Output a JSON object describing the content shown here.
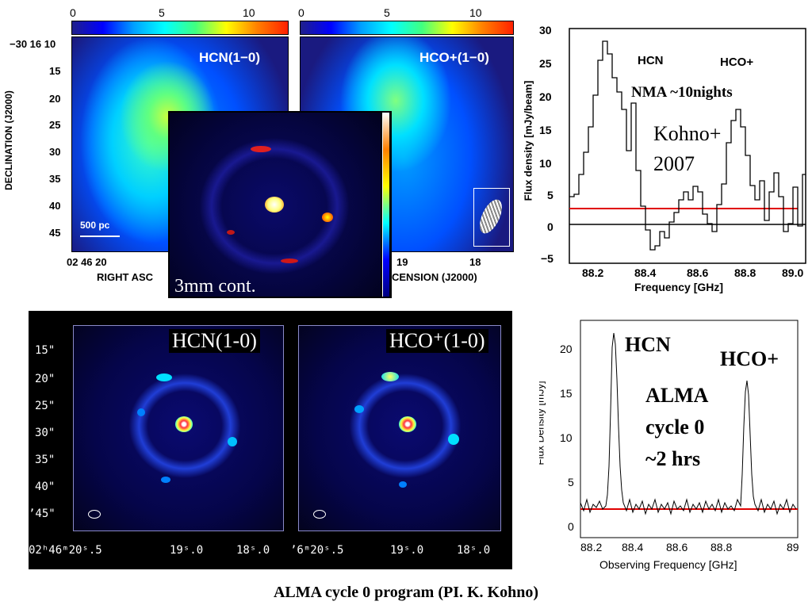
{
  "top_maps": {
    "colorbar_ticks": [
      "0",
      "5",
      "10"
    ],
    "hcn_title": "HCN(1−0)",
    "hco_title": "HCO+(1−0)",
    "dec_label": "DECLINATION (J2000)",
    "dec_ticks": [
      "−30 16 10",
      "15",
      "20",
      "25",
      "30",
      "35",
      "40",
      "45"
    ],
    "ra_tick_left": "02 46 20",
    "ra_label_left": "RIGHT ASC",
    "ra_ticks_right": [
      "19",
      "18"
    ],
    "ra_label_right": "CENSION (J2000)",
    "scalebar_label": "500 pc"
  },
  "inset": {
    "label": "3mm cont."
  },
  "nma_spectrum": {
    "ylabel": "Flux density [mJy/beam]",
    "xlabel": "Frequency [GHz]",
    "yticks": [
      "30",
      "25",
      "20",
      "15",
      "10",
      "5",
      "0",
      "−5"
    ],
    "xticks": [
      "88.2",
      "88.4",
      "88.6",
      "88.8",
      "89.0"
    ],
    "hcn_label": "HCN",
    "hco_label": "HCO+",
    "note": "NMA ~10nights",
    "ref_line1": "Kohno+",
    "ref_line2": "2007",
    "line_color": "#e00000"
  },
  "alma_maps": {
    "hcn_label": "HCN(1-0)",
    "hco_label": "HCO⁺(1-0)",
    "dec_ticks": [
      "15\"",
      "20\"",
      "25\"",
      "30\"",
      "35\"",
      "40\"",
      "ʼ45\""
    ],
    "ra_ticks_left": [
      "02ʰ46ᵐ20ˢ.5",
      "19ˢ.0",
      "18ˢ.0"
    ],
    "ra_ticks_right": [
      "ʼ6ᵐ20ˢ.5",
      "19ˢ.0",
      "18ˢ.0"
    ]
  },
  "alma_spectrum": {
    "ylabel": "Flux Density [mJy]",
    "xlabel": "Observing Frequency [GHz]",
    "yticks": [
      "20",
      "15",
      "10",
      "5",
      "0"
    ],
    "xticks": [
      "88.2",
      "88.4",
      "88.6",
      "88.8",
      "89"
    ],
    "hcn_label": "HCN",
    "hco_label": "HCO+",
    "note_line1": "ALMA",
    "note_line2": "cycle 0",
    "note_line3": "~2 hrs",
    "line_color": "#e00000"
  },
  "caption": "ALMA cycle 0 program (PI. K. Kohno)"
}
